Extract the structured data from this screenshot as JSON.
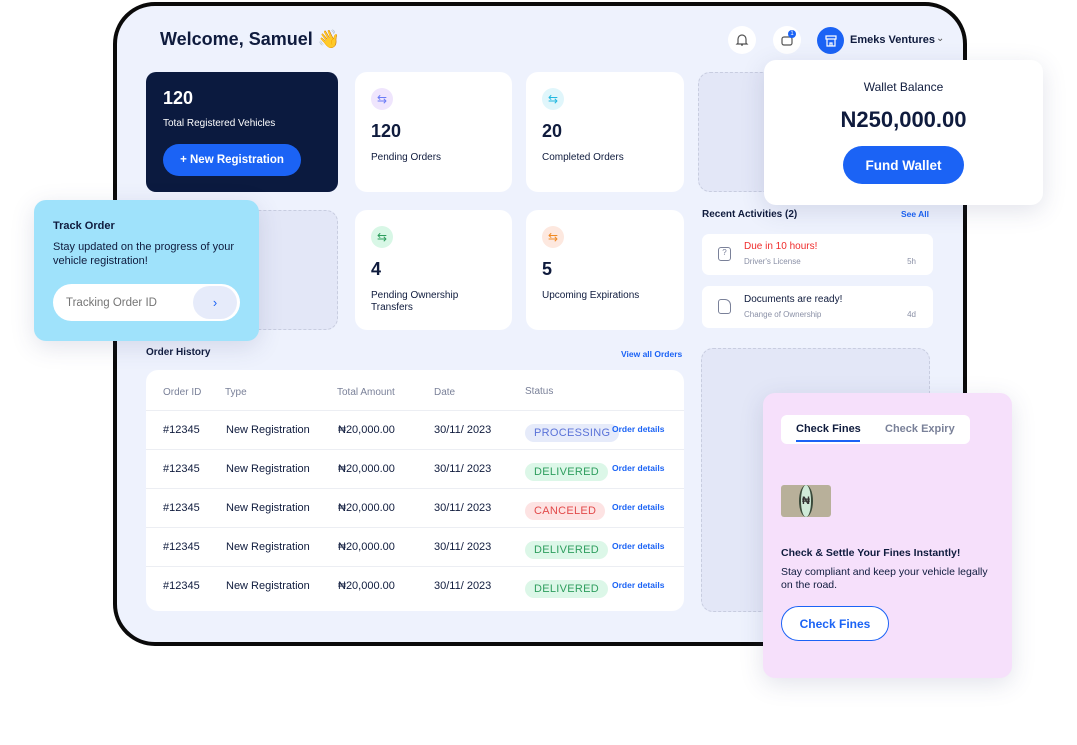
{
  "header": {
    "welcome": "Welcome, Samuel 👋",
    "cart_count": "1",
    "business": "Emeks Ventures"
  },
  "stats": {
    "total": {
      "value": "120",
      "label": "Total Registered Vehicles",
      "button": "+ New Registration"
    },
    "pending": {
      "value": "120",
      "label": "Pending Orders",
      "color": "#8b7cf6"
    },
    "completed": {
      "value": "20",
      "label": "Completed Orders",
      "color": "#22b8e0"
    },
    "transfers": {
      "value": "4",
      "label": "Pending Ownership Transfers",
      "color": "#2e9e5e"
    },
    "expirations": {
      "value": "5",
      "label": "Upcoming Expirations",
      "color": "#f08a24"
    }
  },
  "wallet": {
    "title": "Wallet Balance",
    "amount": "N250,000.00",
    "button": "Fund Wallet"
  },
  "track": {
    "title": "Track Order",
    "desc": "Stay updated on the progress of your vehicle registration!",
    "placeholder": "Tracking Order ID"
  },
  "activities": {
    "title": "Recent Activities (2)",
    "see_all": "See All",
    "items": [
      {
        "title": "Due in 10 hours!",
        "sub": "Driver's License",
        "time": "5h"
      },
      {
        "title": "Documents are ready!",
        "sub": "Change of Ownership",
        "time": "4d"
      }
    ]
  },
  "orders": {
    "title": "Order History",
    "view_all": "View all Orders",
    "columns": [
      "Order ID",
      "Type",
      "Total Amount",
      "Date",
      "Status"
    ],
    "rows": [
      {
        "id": "#12345",
        "type": "New Registration",
        "amount": "₦20,000.00",
        "date": "30/11/ 2023",
        "status": "PROCESSING",
        "link": "Order details"
      },
      {
        "id": "#12345",
        "type": "New Registration",
        "amount": "₦20,000.00",
        "date": "30/11/ 2023",
        "status": "DELIVERED",
        "link": "Order details"
      },
      {
        "id": "#12345",
        "type": "New Registration",
        "amount": "₦20,000.00",
        "date": "30/11/ 2023",
        "status": "CANCELED",
        "link": "Order details"
      },
      {
        "id": "#12345",
        "type": "New Registration",
        "amount": "₦20,000.00",
        "date": "30/11/ 2023",
        "status": "DELIVERED",
        "link": "Order details"
      },
      {
        "id": "#12345",
        "type": "New Registration",
        "amount": "₦20,000.00",
        "date": "30/11/ 2023",
        "status": "DELIVERED",
        "link": "Order details"
      }
    ]
  },
  "fines": {
    "tabs": [
      "Check Fines",
      "Check Expiry"
    ],
    "active_tab": "Check Fines",
    "heading": "Check & Settle Your Fines Instantly!",
    "desc": "Stay compliant and keep your vehicle legally on the road.",
    "button": "Check Fines"
  },
  "colors": {
    "accent": "#1b63f5",
    "navy": "#0b1a3f",
    "danger": "#ef2b2b"
  }
}
